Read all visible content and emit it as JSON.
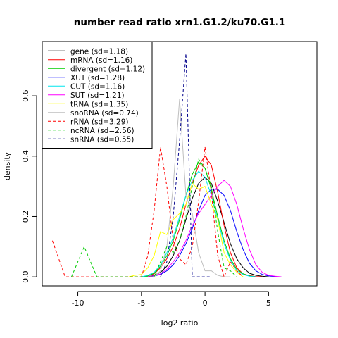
{
  "chart_data": {
    "type": "line",
    "title": "number read ratio xrn1.G1.2/ku70.G1.1",
    "xlabel": "log2 ratio",
    "ylabel": "density",
    "xlim": [
      -12.8,
      8.8
    ],
    "ylim": [
      -0.03,
      0.78
    ],
    "xticks": [
      -10,
      -5,
      0,
      5
    ],
    "yticks": [
      0.0,
      0.2,
      0.4,
      0.6
    ],
    "x_tick_labels": [
      "-10",
      "-5",
      "0",
      "5"
    ],
    "y_tick_labels": [
      "0.0",
      "0.2",
      "0.4",
      "0.6"
    ],
    "grid": false,
    "legend_position": "top-left",
    "series": [
      {
        "name": "gene (sd=1.18)",
        "color": "#000000",
        "dash": "solid",
        "x": [
          -4.5,
          -4.0,
          -3.5,
          -3.0,
          -2.5,
          -2.0,
          -1.5,
          -1.0,
          -0.5,
          0.0,
          0.5,
          1.0,
          1.5,
          2.0,
          2.5,
          3.0,
          3.5,
          4.0,
          4.5,
          5.0
        ],
        "y": [
          0.0,
          0.005,
          0.015,
          0.035,
          0.07,
          0.12,
          0.19,
          0.26,
          0.31,
          0.33,
          0.31,
          0.25,
          0.18,
          0.11,
          0.06,
          0.03,
          0.012,
          0.005,
          0.002,
          0.0
        ]
      },
      {
        "name": "mRNA (sd=1.16)",
        "color": "#ff0000",
        "dash": "solid",
        "x": [
          -5.0,
          -4.5,
          -4.0,
          -3.5,
          -3.0,
          -2.5,
          -2.0,
          -1.5,
          -1.0,
          -0.5,
          0.0,
          0.5,
          1.0,
          1.5,
          2.0,
          2.5,
          3.0,
          3.5,
          4.0,
          4.5
        ],
        "y": [
          0.0,
          0.003,
          0.01,
          0.03,
          0.06,
          0.1,
          0.16,
          0.24,
          0.31,
          0.37,
          0.4,
          0.37,
          0.28,
          0.17,
          0.08,
          0.03,
          0.01,
          0.004,
          0.001,
          0.0
        ]
      },
      {
        "name": "divergent (sd=1.12)",
        "color": "#00cd00",
        "dash": "solid",
        "x": [
          -5.0,
          -4.5,
          -4.0,
          -3.5,
          -3.0,
          -2.5,
          -2.0,
          -1.5,
          -1.0,
          -0.5,
          0.0,
          0.5,
          1.0,
          1.5,
          2.0,
          2.5,
          3.0,
          3.5,
          4.0
        ],
        "y": [
          0.0,
          0.003,
          0.012,
          0.035,
          0.07,
          0.12,
          0.19,
          0.27,
          0.34,
          0.38,
          0.36,
          0.29,
          0.2,
          0.12,
          0.06,
          0.025,
          0.01,
          0.003,
          0.0
        ]
      },
      {
        "name": "XUT (sd=1.28)",
        "color": "#0000ff",
        "dash": "solid",
        "x": [
          -4.5,
          -4.0,
          -3.5,
          -3.0,
          -2.5,
          -2.0,
          -1.5,
          -1.0,
          -0.5,
          0.0,
          0.5,
          1.0,
          1.5,
          2.0,
          2.5,
          3.0,
          3.5,
          4.0,
          4.5,
          5.0,
          5.5,
          6.0
        ],
        "y": [
          0.0,
          0.003,
          0.008,
          0.02,
          0.04,
          0.07,
          0.11,
          0.16,
          0.22,
          0.27,
          0.29,
          0.29,
          0.27,
          0.22,
          0.15,
          0.09,
          0.045,
          0.02,
          0.008,
          0.003,
          0.001,
          0.0
        ]
      },
      {
        "name": "CUT (sd=1.16)",
        "color": "#00e5ee",
        "dash": "solid",
        "x": [
          -5.0,
          -4.5,
          -4.0,
          -3.5,
          -3.0,
          -2.5,
          -2.0,
          -1.5,
          -1.0,
          -0.5,
          0.0,
          0.5,
          1.0,
          1.5,
          2.0,
          2.5,
          3.0,
          3.5,
          4.0
        ],
        "y": [
          0.0,
          0.005,
          0.015,
          0.04,
          0.08,
          0.13,
          0.2,
          0.27,
          0.32,
          0.35,
          0.33,
          0.27,
          0.19,
          0.11,
          0.055,
          0.02,
          0.008,
          0.002,
          0.0
        ]
      },
      {
        "name": "SUT (sd=1.21)",
        "color": "#ff00ff",
        "dash": "solid",
        "x": [
          -4.5,
          -4.0,
          -3.5,
          -3.0,
          -2.5,
          -2.0,
          -1.5,
          -1.0,
          -0.5,
          0.0,
          0.5,
          1.0,
          1.5,
          2.0,
          2.5,
          3.0,
          3.5,
          4.0,
          4.5,
          5.0,
          5.5,
          6.0
        ],
        "y": [
          0.0,
          0.004,
          0.01,
          0.025,
          0.05,
          0.08,
          0.12,
          0.17,
          0.21,
          0.24,
          0.27,
          0.3,
          0.32,
          0.3,
          0.24,
          0.16,
          0.09,
          0.04,
          0.015,
          0.005,
          0.002,
          0.0
        ]
      },
      {
        "name": "tRNA (sd=1.35)",
        "color": "#ffff00",
        "dash": "solid",
        "x": [
          -6.0,
          -5.5,
          -5.0,
          -4.5,
          -4.0,
          -3.5,
          -3.0,
          -2.5,
          -2.0,
          -1.5,
          -1.0,
          -0.5,
          0.0,
          0.5,
          1.0,
          1.5,
          2.0,
          2.5,
          3.0
        ],
        "y": [
          0.0,
          0.005,
          0.008,
          0.03,
          0.07,
          0.15,
          0.14,
          0.19,
          0.21,
          0.24,
          0.31,
          0.29,
          0.3,
          0.24,
          0.19,
          0.08,
          0.04,
          0.015,
          0.0
        ]
      },
      {
        "name": "snoRNA (sd=0.74)",
        "color": "#bebebe",
        "dash": "solid",
        "x": [
          -4.0,
          -3.5,
          -3.0,
          -2.5,
          -2.0,
          -1.5,
          -1.0,
          -0.5,
          0.0,
          0.5,
          1.0,
          1.5,
          2.0
        ],
        "y": [
          0.0,
          0.02,
          0.1,
          0.3,
          0.59,
          0.27,
          0.21,
          0.08,
          0.02,
          0.02,
          0.005,
          0.0,
          0.0
        ]
      },
      {
        "name": "rRNA (sd=3.29)",
        "color": "#ff0000",
        "dash": "dashed",
        "x": [
          -12.0,
          -11.5,
          -11.0,
          -10.5,
          -5.0,
          -4.5,
          -4.0,
          -3.5,
          -3.0,
          -2.5,
          -2.0,
          -1.5,
          -1.0,
          -0.5,
          0.0,
          0.5,
          1.0,
          1.5,
          2.0,
          2.5,
          3.0
        ],
        "y": [
          0.12,
          0.06,
          0.0,
          0.0,
          0.0,
          0.07,
          0.22,
          0.43,
          0.3,
          0.12,
          0.06,
          0.04,
          0.1,
          0.25,
          0.43,
          0.28,
          0.07,
          0.0,
          0.05,
          0.02,
          0.0
        ]
      },
      {
        "name": "ncRNA (sd=2.56)",
        "color": "#00cd00",
        "dash": "dashed",
        "x": [
          -10.5,
          -10.0,
          -9.5,
          -9.0,
          -8.5,
          -4.0,
          -3.5,
          -3.0,
          -2.5,
          -2.0,
          -1.5,
          -1.0,
          -0.5,
          0.0,
          0.5,
          1.0,
          1.5,
          2.0,
          2.5
        ],
        "y": [
          0.0,
          0.05,
          0.1,
          0.05,
          0.0,
          0.0,
          0.05,
          0.1,
          0.08,
          0.12,
          0.2,
          0.3,
          0.39,
          0.36,
          0.3,
          0.15,
          0.03,
          0.02,
          0.0
        ]
      },
      {
        "name": "snRNA (sd=0.55)",
        "color": "#00008b",
        "dash": "dashed",
        "x": [
          -3.5,
          -3.0,
          -2.5,
          -2.0,
          -1.5,
          -1.0,
          -0.5,
          0.0,
          0.5
        ],
        "y": [
          0.0,
          0.05,
          0.2,
          0.45,
          0.74,
          0.0,
          0.0,
          0.0,
          0.0
        ]
      }
    ]
  }
}
